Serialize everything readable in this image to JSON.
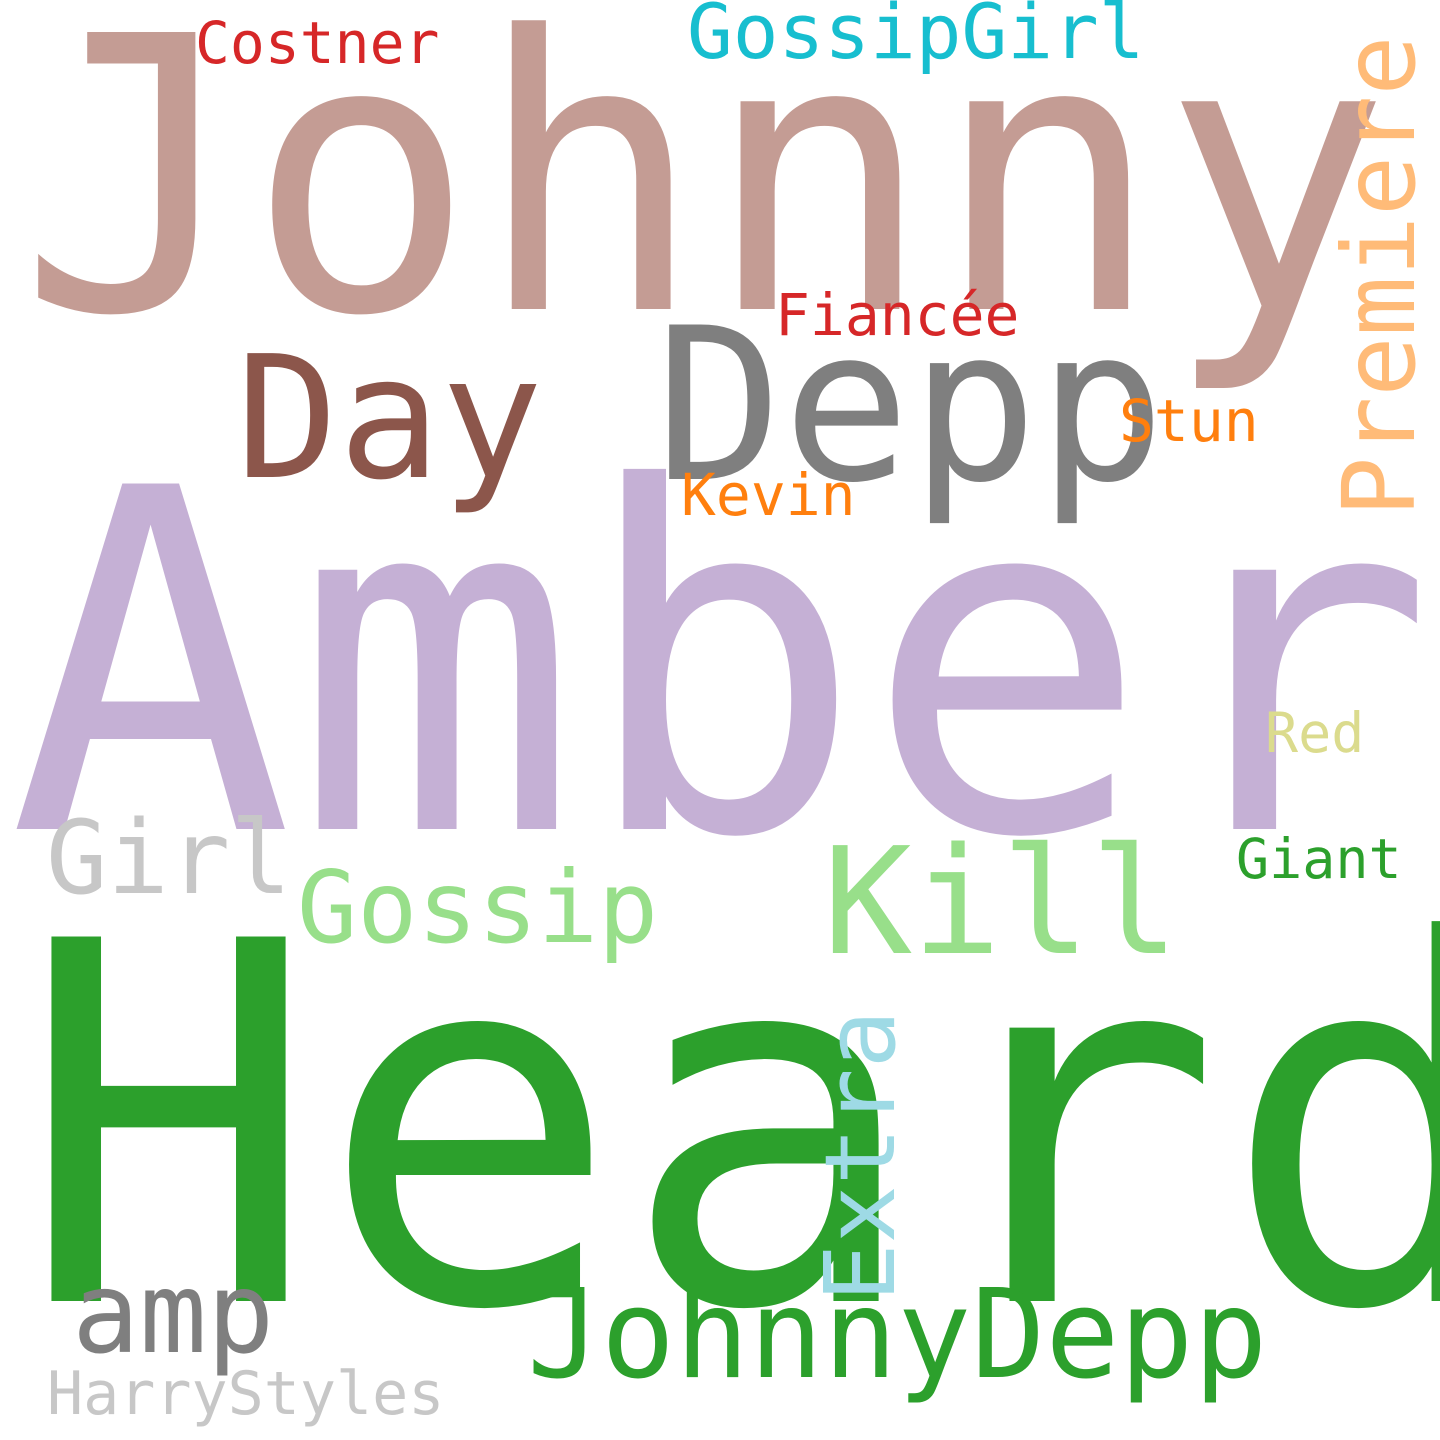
{
  "cloud": {
    "background": "#ffffff",
    "words": {
      "johnny": {
        "text": "Johnny",
        "color": "#c49c94"
      },
      "amber": {
        "text": "Amber",
        "color": "#c5b0d5"
      },
      "heard": {
        "text": "Heard",
        "color": "#2ca02c"
      },
      "depp": {
        "text": "Depp",
        "color": "#7f7f7f"
      },
      "day": {
        "text": "Day",
        "color": "#8c564b"
      },
      "premiere": {
        "text": "Premiere",
        "color": "#ffbb78"
      },
      "gossipgirl": {
        "text": "GossipGirl",
        "color": "#17becf"
      },
      "costner": {
        "text": "Costner",
        "color": "#d62728"
      },
      "fiancee": {
        "text": "Fiancée",
        "color": "#d62728"
      },
      "stun": {
        "text": "Stun",
        "color": "#ff7f0e"
      },
      "kevin": {
        "text": "Kevin",
        "color": "#ff7f0e"
      },
      "red": {
        "text": "Red",
        "color": "#dbdb8d"
      },
      "girl": {
        "text": "Girl",
        "color": "#c7c7c7"
      },
      "gossip": {
        "text": "Gossip",
        "color": "#98df8a"
      },
      "kill": {
        "text": "Kill",
        "color": "#98df8a"
      },
      "giant": {
        "text": "Giant",
        "color": "#2ca02c"
      },
      "extra": {
        "text": "Extra",
        "color": "#9edae5"
      },
      "amp": {
        "text": "amp",
        "color": "#7f7f7f"
      },
      "johnnydepp": {
        "text": "JohnnyDepp",
        "color": "#2ca02c"
      },
      "harrystyles": {
        "text": "HarryStyles",
        "color": "#c7c7c7"
      }
    }
  }
}
